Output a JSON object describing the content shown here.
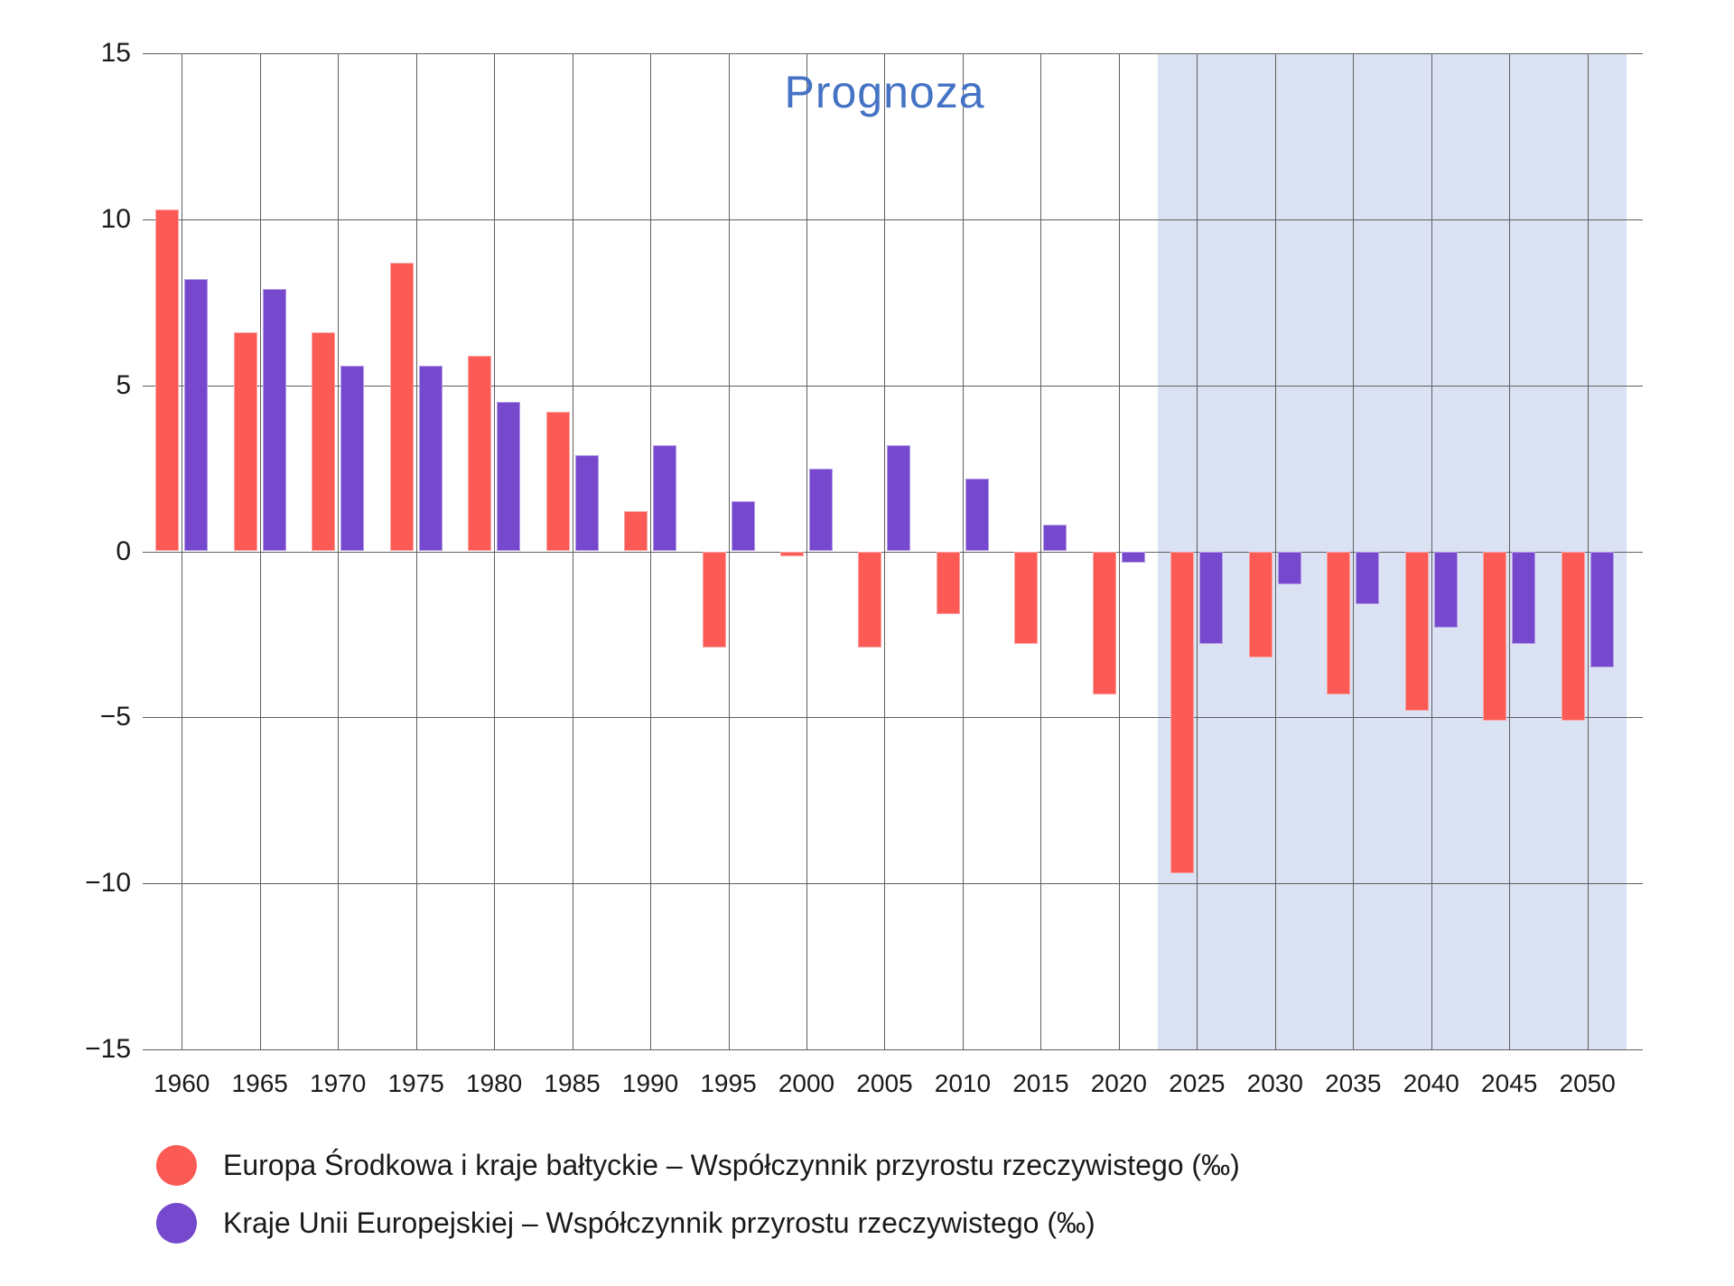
{
  "page": {
    "background": "#ffffff"
  },
  "chart_data": {
    "type": "bar",
    "title": "",
    "xlabel": "",
    "ylabel": "",
    "categories": [
      "1960",
      "1965",
      "1970",
      "1975",
      "1980",
      "1985",
      "1990",
      "1995",
      "2000",
      "2005",
      "2010",
      "2015",
      "2020",
      "2025",
      "2030",
      "2035",
      "2040",
      "2045",
      "2050"
    ],
    "series": [
      {
        "name": "Europa Środkowa i kraje bałtyckie – Współczynnik przyrostu rzeczywistego (‰)",
        "slug": "europa-srodkowa-i-kraje-baltyckie",
        "color": "#FB5A55",
        "values": [
          10.3,
          6.6,
          6.6,
          8.7,
          5.9,
          4.2,
          1.2,
          -2.9,
          -0.15,
          -2.9,
          -1.9,
          -2.8,
          -4.3,
          -9.7,
          -3.2,
          -4.3,
          -4.8,
          -5.1,
          -5.1
        ]
      },
      {
        "name": "Kraje Unii Europejskiej – Współczynnik przyrostu rzeczywistego (‰)",
        "slug": "kraje-unii-europejskiej",
        "color": "#7648CE",
        "values": [
          8.2,
          7.9,
          5.6,
          5.6,
          4.5,
          2.9,
          3.2,
          1.5,
          2.5,
          3.2,
          2.2,
          0.8,
          -0.35,
          -2.8,
          -1.0,
          -1.6,
          -2.3,
          -2.8,
          -3.5
        ]
      }
    ],
    "ylim": [
      -15,
      15
    ],
    "ytick_values": [
      15,
      10,
      5,
      0,
      -5,
      -10,
      -15
    ],
    "ytick_labels": [
      "15",
      "10",
      "5",
      "0",
      "−5",
      "−10",
      "−15"
    ],
    "grid": "both",
    "gridline_color": "#5f5f5f",
    "legend_position": "bottom-left",
    "forecast": {
      "label": "Prognoza",
      "label_color": "#4472C4",
      "band_color": "#DBE2F3",
      "start_category": "2025",
      "covers_categories": [
        "2025",
        "2030",
        "2035",
        "2040",
        "2045",
        "2050"
      ]
    }
  }
}
